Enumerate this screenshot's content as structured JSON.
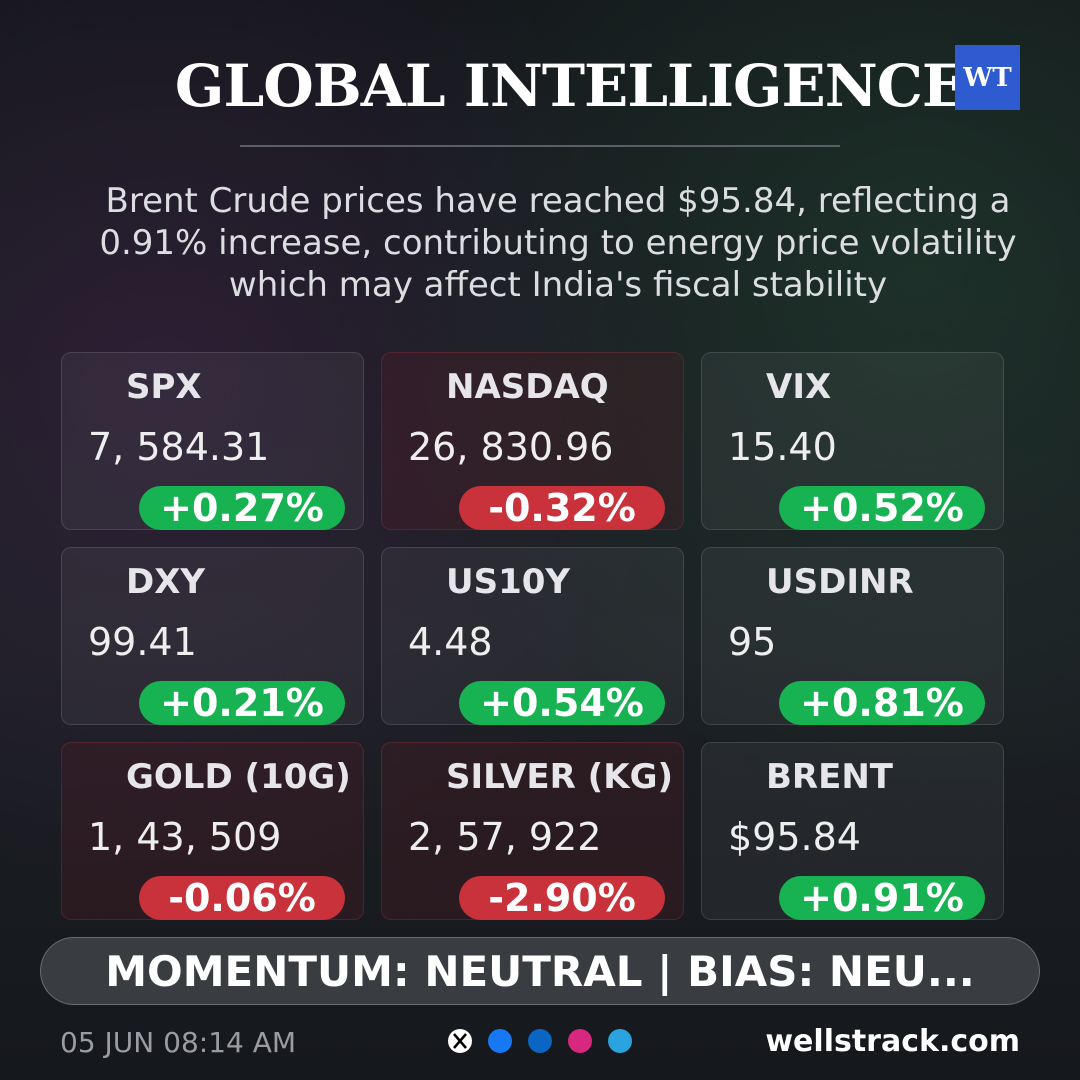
{
  "header": {
    "title": "GLOBAL INTELLIGENCE",
    "logo": "WT"
  },
  "summary": "Brent Crude prices have reached $95.84, reflecting a 0.91% increase, contributing to energy price volatility which may affect India's fiscal stability",
  "tiles": [
    {
      "name": "SPX",
      "value": "7, 584.31",
      "change": "+0.27%",
      "color": "#17b352"
    },
    {
      "name": "NASDAQ",
      "value": "26, 830.96",
      "change": "-0.32%",
      "color": "#c9323a"
    },
    {
      "name": "VIX",
      "value": "15.40",
      "change": "+0.52%",
      "color": "#17b352"
    },
    {
      "name": "DXY",
      "value": "99.41",
      "change": "+0.21%",
      "color": "#17b352"
    },
    {
      "name": "US10Y",
      "value": "4.48",
      "change": "+0.54%",
      "color": "#17b352"
    },
    {
      "name": "USDINR",
      "value": "95",
      "change": "+0.81%",
      "color": "#17b352"
    },
    {
      "name": "GOLD (10G)",
      "value": "1, 43, 509",
      "change": "-0.06%",
      "color": "#c9323a"
    },
    {
      "name": "SILVER (KG)",
      "value": "2, 57, 922",
      "change": "-2.90%",
      "color": "#c9323a"
    },
    {
      "name": "BRENT",
      "value": "$95.84",
      "change": "+0.91%",
      "color": "#17b352"
    }
  ],
  "banner": "MOMENTUM: NEUTRAL | BIAS: NEU...",
  "footer": {
    "date": "05 JUN 08:14 AM",
    "site": "wellstrack.com"
  }
}
